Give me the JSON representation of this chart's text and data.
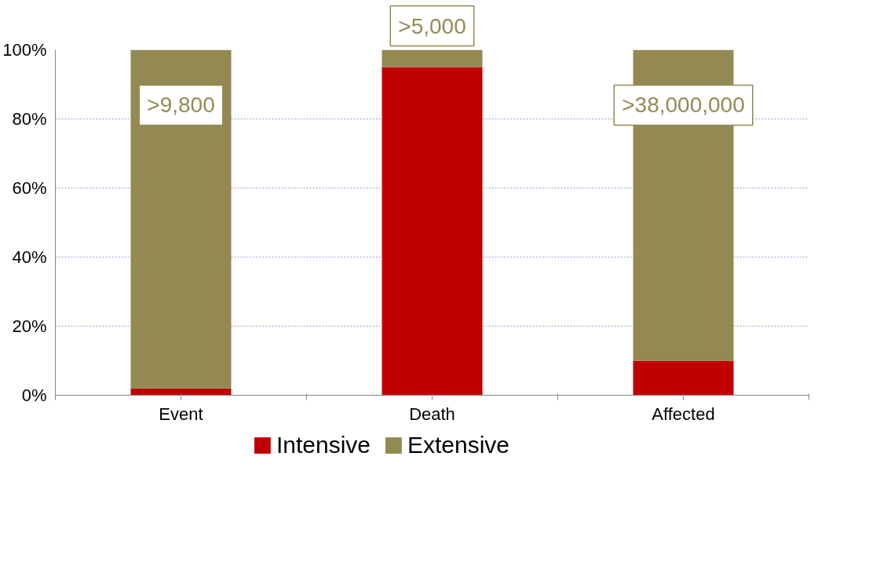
{
  "chart_data": {
    "type": "bar",
    "stacked": true,
    "categories": [
      "Event",
      "Death",
      "Affected"
    ],
    "series": [
      {
        "name": "Intensive",
        "color": "#c00000",
        "values": [
          2,
          95,
          10
        ]
      },
      {
        "name": "Extensive",
        "color": "#938953",
        "values": [
          98,
          5,
          90
        ]
      }
    ],
    "ylim": [
      0,
      100
    ],
    "yticks": [
      {
        "value": 0,
        "label": "0%"
      },
      {
        "value": 20,
        "label": "20%"
      },
      {
        "value": 40,
        "label": "40%"
      },
      {
        "value": 60,
        "label": "60%"
      },
      {
        "value": 80,
        "label": "80%"
      },
      {
        "value": 100,
        "label": "100%"
      }
    ],
    "grid": "y",
    "legend": "bottom",
    "annotations": [
      ">9,800",
      ">5,000",
      ">38,000,000"
    ]
  }
}
